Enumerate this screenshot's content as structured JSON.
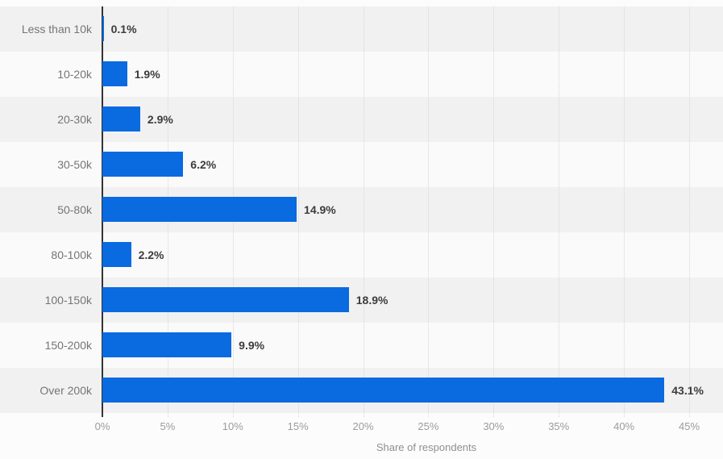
{
  "chart_data": {
    "type": "bar",
    "orientation": "horizontal",
    "title": "",
    "xlabel": "Share of respondents",
    "ylabel": "",
    "categories": [
      "Less than 10k",
      "10-20k",
      "20-30k",
      "30-50k",
      "50-80k",
      "80-100k",
      "100-150k",
      "150-200k",
      "Over 200k"
    ],
    "values": [
      0.1,
      1.9,
      2.9,
      6.2,
      14.9,
      2.2,
      18.9,
      9.9,
      43.1
    ],
    "value_labels": [
      "0.1%",
      "1.9%",
      "2.9%",
      "6.2%",
      "14.9%",
      "2.2%",
      "18.9%",
      "9.9%",
      "43.1%"
    ],
    "xlim": [
      0,
      45
    ],
    "x_tick_values": [
      0,
      5,
      10,
      15,
      20,
      25,
      30,
      35,
      40,
      45
    ],
    "x_ticks": [
      "0%",
      "5%",
      "10%",
      "15%",
      "20%",
      "25%",
      "30%",
      "35%",
      "40%",
      "45%"
    ],
    "grid": "vertical-dotted",
    "legend": "none",
    "row_striping": true,
    "colors": {
      "bar": "#0a6adf",
      "stripe_odd": "#f1f1f1",
      "stripe_even": "#fafafa",
      "gridline": "#d6d6d6",
      "axis_line": "#333333",
      "category_label": "#757575",
      "value_label": "#3c3c3c",
      "tick_label": "#9b9b9b",
      "axis_title": "#8f8f8f",
      "background": "#fcfcfc"
    }
  }
}
